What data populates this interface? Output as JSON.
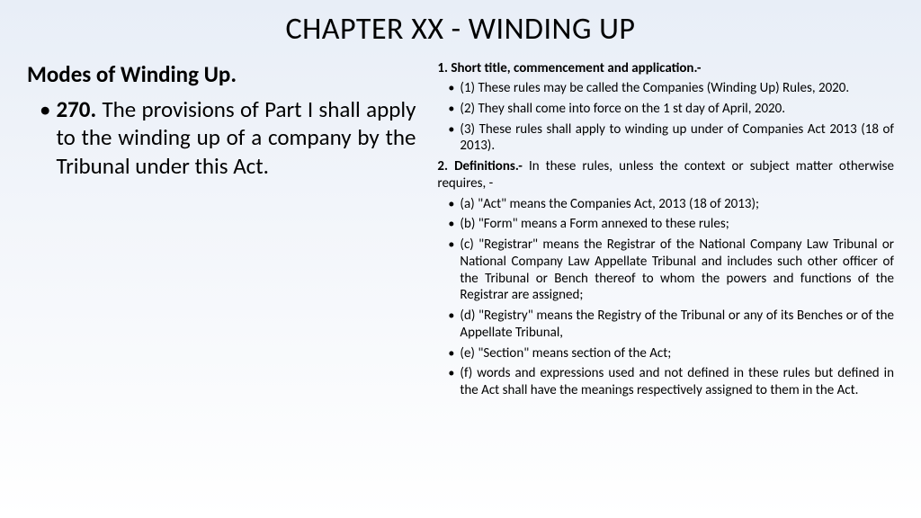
{
  "title": "CHAPTER XX - WINDING UP",
  "left": {
    "heading": "Modes of Winding Up.",
    "item_num": "270.",
    "item_text": " The provisions of Part I shall apply to the winding up of a company by the Tribunal under this Act."
  },
  "right": {
    "h1": "1. Short title, commencement and application.-",
    "i1": "(1) These rules may be called the Companies (Winding Up) Rules, 2020.",
    "i2": "(2) They shall come into force on the 1 st day of April, 2020.",
    "i3": "(3) These rules shall apply to winding up under of Companies Act 2013 (18    of 2013).",
    "def_lead": "2. Definitions.-",
    "def_rest": " In these rules, unless the context or subject matter otherwise requires, -",
    "a": "(a) \"Act\" means the Companies Act, 2013 (18 of 2013);",
    "b": "(b) \"Form\" means a Form annexed to these rules;",
    "c": "(c) \"Registrar\" means the Registrar of the National Company Law Tribunal or National Company Law Appellate Tribunal and includes such other officer of the Tribunal or Bench thereof to whom the powers and functions of the Registrar are assigned;",
    "d": "(d) \"Registry\" means the Registry of the Tribunal or any of its Benches or of the Appellate Tribunal,",
    "e": "(e) \"Section\" means section of the Act;",
    "f": "(f) words and expressions used and not defined in these rules but defined in the Act shall have the meanings respectively assigned to them in the Act."
  }
}
